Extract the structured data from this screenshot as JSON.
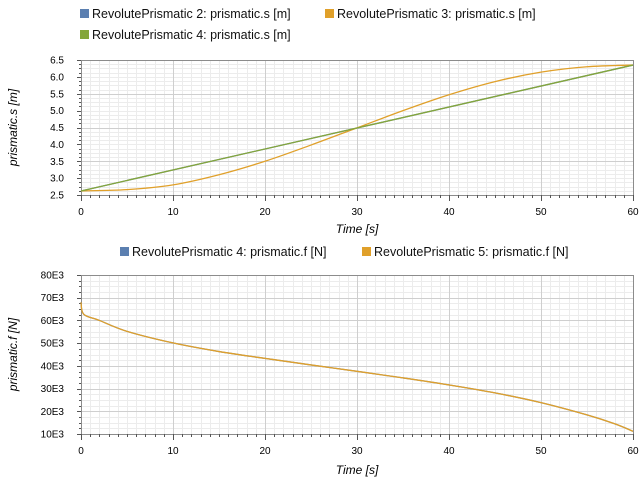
{
  "chart_data": [
    {
      "type": "line",
      "ylabel": "prismatic.s [m]",
      "xlabel": "Time [s]",
      "xlim": [
        0,
        60
      ],
      "ylim": [
        2.5,
        6.5
      ],
      "xticks": [
        "0",
        "10",
        "20",
        "30",
        "40",
        "50",
        "60"
      ],
      "yticks": [
        "2.5",
        "3.0",
        "3.5",
        "4.0",
        "4.5",
        "5.0",
        "5.5",
        "6.0",
        "6.5"
      ],
      "grid": true,
      "legend_position": "top",
      "series": [
        {
          "name": "RevolutePrismatic 2: prismatic.s [m]",
          "color": "#5b7fb0",
          "x": [
            0,
            60
          ],
          "y": [
            2.62,
            6.35
          ]
        },
        {
          "name": "RevolutePrismatic 3: prismatic.s [m]",
          "color": "#e0a02a",
          "x": [
            0,
            5,
            10,
            15,
            20,
            25,
            30,
            35,
            40,
            45,
            50,
            55,
            60
          ],
          "y": [
            2.62,
            2.66,
            2.8,
            3.1,
            3.5,
            3.98,
            4.49,
            5.0,
            5.47,
            5.86,
            6.14,
            6.3,
            6.35
          ]
        },
        {
          "name": "RevolutePrismatic 4: prismatic.s [m]",
          "color": "#84a63a",
          "x": [
            0,
            60
          ],
          "y": [
            2.62,
            6.35
          ]
        }
      ]
    },
    {
      "type": "line",
      "ylabel": "prismatic.f [N]",
      "xlabel": "Time [s]",
      "xlim": [
        0,
        60
      ],
      "ylim": [
        10000,
        80000
      ],
      "xticks": [
        "0",
        "10",
        "20",
        "30",
        "40",
        "50",
        "60"
      ],
      "yticks": [
        "10E3",
        "20E3",
        "30E3",
        "40E3",
        "50E3",
        "60E3",
        "70E3",
        "80E3"
      ],
      "grid": true,
      "legend_position": "top",
      "series": [
        {
          "name": "RevolutePrismatic 4: prismatic.f [N]",
          "color": "#5b7fb0",
          "x": [
            0,
            0.3,
            2,
            5,
            10,
            15,
            20,
            25,
            30,
            35,
            40,
            45,
            50,
            55,
            58,
            60
          ],
          "y": [
            68000,
            62700,
            60000,
            55200,
            50100,
            46300,
            43300,
            40400,
            37600,
            34700,
            31600,
            28100,
            23800,
            18400,
            14500,
            11200
          ]
        },
        {
          "name": "RevolutePrismatic 5: prismatic.f [N]",
          "color": "#e0a02a",
          "x": [
            0,
            0.3,
            2,
            5,
            10,
            15,
            20,
            25,
            30,
            35,
            40,
            45,
            50,
            55,
            58,
            60
          ],
          "y": [
            68000,
            62700,
            60000,
            55200,
            50100,
            46300,
            43300,
            40400,
            37600,
            34700,
            31600,
            28100,
            23800,
            18400,
            14500,
            11200
          ]
        }
      ]
    }
  ]
}
